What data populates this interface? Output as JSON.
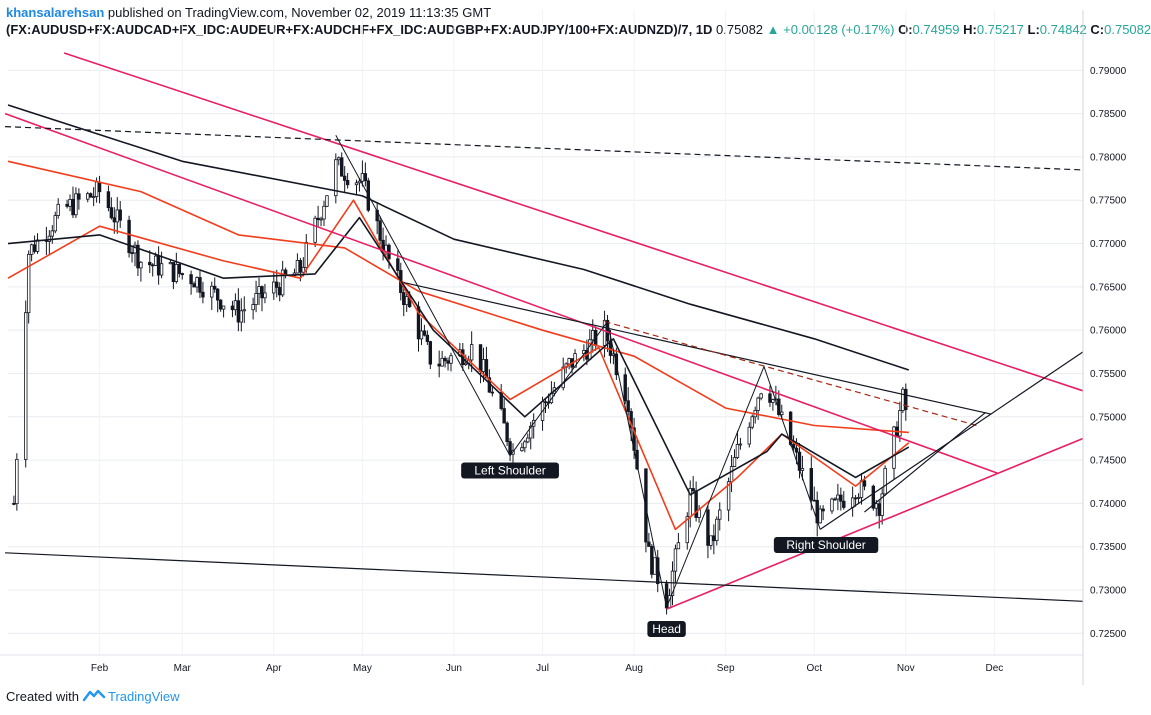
{
  "header": {
    "author": "khansalarehsan",
    "published_text": "published on TradingView.com, November 02, 2019 11:13:35 GMT",
    "symbol": "(FX:AUDUSD+FX:AUDCAD+FX_IDC:AUDEUR+FX:AUDCHF+FX_IDC:AUDGBP+FX:AUDJPY/100+FX:AUDNZD)/7, 1D",
    "last": "0.75082",
    "change": "▲ +0.00128 (+0.17%)",
    "o_label": "O:",
    "o": "0.74959",
    "h_label": "H:",
    "h": "0.75217",
    "l_label": "L:",
    "l": "0.74842",
    "c_label": "C:",
    "c": "0.75082"
  },
  "footer": {
    "created_with": "Created with",
    "brand": "TradingView"
  },
  "colors": {
    "pink": "#e91e63",
    "red": "#f23d1c",
    "black": "#131722",
    "grid": "#e9ecf1",
    "brand": "#2196f3",
    "dashed_brown": "#a52714"
  },
  "chart_data": {
    "type": "candlestick",
    "title": "(FX:AUDUSD+FX:AUDCAD+FX_IDC:AUDEUR+FX:AUDCHF+FX_IDC:AUDGBP+FX:AUDJPY/100+FX:AUDNZD)/7, 1D",
    "ylim": [
      0.7225,
      0.7935
    ],
    "y_ticks": [
      "0.79000",
      "0.78500",
      "0.78000",
      "0.77500",
      "0.77000",
      "0.76500",
      "0.76000",
      "0.75500",
      "0.75000",
      "0.74500",
      "0.74000",
      "0.73500",
      "0.73000",
      "0.72500"
    ],
    "x_ticks": [
      "Feb",
      "Mar",
      "Apr",
      "May",
      "Jun",
      "Jul",
      "Aug",
      "Sep",
      "Oct",
      "Nov",
      "Dec"
    ],
    "x_range": [
      "2019-01-01",
      "2019-12-31"
    ],
    "price_path": [
      {
        "date": "2019-01-03",
        "price": 0.74
      },
      {
        "date": "2019-01-08",
        "price": 0.769
      },
      {
        "date": "2019-01-20",
        "price": 0.774
      },
      {
        "date": "2019-02-01",
        "price": 0.776
      },
      {
        "date": "2019-02-15",
        "price": 0.768
      },
      {
        "date": "2019-03-05",
        "price": 0.766
      },
      {
        "date": "2019-03-20",
        "price": 0.762
      },
      {
        "date": "2019-04-10",
        "price": 0.767
      },
      {
        "date": "2019-04-22",
        "price": 0.779
      },
      {
        "date": "2019-05-01",
        "price": 0.777
      },
      {
        "date": "2019-05-10",
        "price": 0.768
      },
      {
        "date": "2019-05-25",
        "price": 0.756
      },
      {
        "date": "2019-06-08",
        "price": 0.758
      },
      {
        "date": "2019-06-21",
        "price": 0.746
      },
      {
        "date": "2019-07-10",
        "price": 0.756
      },
      {
        "date": "2019-07-22",
        "price": 0.76
      },
      {
        "date": "2019-07-30",
        "price": 0.752
      },
      {
        "date": "2019-08-06",
        "price": 0.734
      },
      {
        "date": "2019-08-12",
        "price": 0.729
      },
      {
        "date": "2019-08-20",
        "price": 0.741
      },
      {
        "date": "2019-08-27",
        "price": 0.735
      },
      {
        "date": "2019-09-05",
        "price": 0.746
      },
      {
        "date": "2019-09-14",
        "price": 0.7545
      },
      {
        "date": "2019-09-24",
        "price": 0.746
      },
      {
        "date": "2019-10-03",
        "price": 0.738
      },
      {
        "date": "2019-10-15",
        "price": 0.742
      },
      {
        "date": "2019-10-23",
        "price": 0.74
      },
      {
        "date": "2019-10-31",
        "price": 0.752
      },
      {
        "date": "2019-11-01",
        "price": 0.7508
      }
    ],
    "moving_averages": [
      {
        "name": "MA black (slow)",
        "color": "#131722",
        "points": [
          {
            "date": "2019-01-01",
            "price": 0.786
          },
          {
            "date": "2019-03-01",
            "price": 0.7795
          },
          {
            "date": "2019-05-01",
            "price": 0.7755
          },
          {
            "date": "2019-06-01",
            "price": 0.7705
          },
          {
            "date": "2019-07-15",
            "price": 0.767
          },
          {
            "date": "2019-08-20",
            "price": 0.763
          },
          {
            "date": "2019-10-01",
            "price": 0.759
          },
          {
            "date": "2019-11-02",
            "price": 0.7554
          }
        ]
      },
      {
        "name": "MA red (medium)",
        "color": "#f23d1c",
        "points": [
          {
            "date": "2019-01-01",
            "price": 0.7795
          },
          {
            "date": "2019-02-15",
            "price": 0.776
          },
          {
            "date": "2019-03-20",
            "price": 0.771
          },
          {
            "date": "2019-04-25",
            "price": 0.7695
          },
          {
            "date": "2019-05-20",
            "price": 0.7645
          },
          {
            "date": "2019-07-01",
            "price": 0.76
          },
          {
            "date": "2019-08-01",
            "price": 0.757
          },
          {
            "date": "2019-09-01",
            "price": 0.751
          },
          {
            "date": "2019-10-01",
            "price": 0.749
          },
          {
            "date": "2019-11-02",
            "price": 0.7482
          }
        ]
      },
      {
        "name": "MA red (fast)",
        "color": "#f23d1c",
        "points": [
          {
            "date": "2019-01-01",
            "price": 0.766
          },
          {
            "date": "2019-02-01",
            "price": 0.772
          },
          {
            "date": "2019-03-15",
            "price": 0.768
          },
          {
            "date": "2019-04-10",
            "price": 0.766
          },
          {
            "date": "2019-04-28",
            "price": 0.775
          },
          {
            "date": "2019-05-20",
            "price": 0.762
          },
          {
            "date": "2019-06-20",
            "price": 0.752
          },
          {
            "date": "2019-07-20",
            "price": 0.758
          },
          {
            "date": "2019-08-15",
            "price": 0.737
          },
          {
            "date": "2019-09-05",
            "price": 0.743
          },
          {
            "date": "2019-09-20",
            "price": 0.748
          },
          {
            "date": "2019-10-15",
            "price": 0.742
          },
          {
            "date": "2019-11-02",
            "price": 0.747
          }
        ]
      },
      {
        "name": "MA black (fast)",
        "color": "#131722",
        "points": [
          {
            "date": "2019-01-01",
            "price": 0.77
          },
          {
            "date": "2019-02-01",
            "price": 0.771
          },
          {
            "date": "2019-03-15",
            "price": 0.766
          },
          {
            "date": "2019-04-15",
            "price": 0.7665
          },
          {
            "date": "2019-04-30",
            "price": 0.773
          },
          {
            "date": "2019-05-25",
            "price": 0.76
          },
          {
            "date": "2019-06-25",
            "price": 0.75
          },
          {
            "date": "2019-07-25",
            "price": 0.759
          },
          {
            "date": "2019-08-20",
            "price": 0.741
          },
          {
            "date": "2019-09-15",
            "price": 0.746
          },
          {
            "date": "2019-09-20",
            "price": 0.748
          },
          {
            "date": "2019-10-15",
            "price": 0.743
          },
          {
            "date": "2019-11-02",
            "price": 0.7465
          }
        ]
      }
    ],
    "trendlines": [
      {
        "name": "pink upper channel",
        "color": "#e91e63",
        "dash": false,
        "from": {
          "date": "2019-01-20",
          "price": 0.792
        },
        "to": {
          "date": "2019-12-31",
          "price": 0.753
        }
      },
      {
        "name": "pink descending neckline",
        "color": "#e91e63",
        "dash": false,
        "from": {
          "date": "2018-12-31",
          "price": 0.785
        },
        "to": {
          "date": "2019-12-02",
          "price": 0.7435
        }
      },
      {
        "name": "pink rising support",
        "color": "#e91e63",
        "dash": false,
        "from": {
          "date": "2019-08-12",
          "price": 0.7278
        },
        "to": {
          "date": "2019-12-31",
          "price": 0.7475
        }
      },
      {
        "name": "black lower channel",
        "color": "#131722",
        "dash": false,
        "from": {
          "date": "2018-12-31",
          "price": 0.7343
        },
        "to": {
          "date": "2019-12-31",
          "price": 0.7287
        }
      },
      {
        "name": "black dashed resistance",
        "color": "#131722",
        "dash": true,
        "from": {
          "date": "2018-12-31",
          "price": 0.7835
        },
        "to": {
          "date": "2019-12-31",
          "price": 0.7785
        }
      },
      {
        "name": "black neckline",
        "color": "#131722",
        "dash": false,
        "from": {
          "date": "2019-05-15",
          "price": 0.7655
        },
        "to": {
          "date": "2019-11-30",
          "price": 0.7503
        }
      },
      {
        "name": "brown dashed neckline",
        "color": "#a52714",
        "dash": true,
        "from": {
          "date": "2019-07-22",
          "price": 0.761
        },
        "to": {
          "date": "2019-11-25",
          "price": 0.749
        }
      },
      {
        "name": "black rising wedge line",
        "color": "#131722",
        "dash": false,
        "from": {
          "date": "2019-10-03",
          "price": 0.737
        },
        "to": {
          "date": "2019-12-31",
          "price": 0.7575
        }
      },
      {
        "name": "black lower wedge",
        "color": "#131722",
        "dash": false,
        "from": {
          "date": "2019-10-18",
          "price": 0.739
        },
        "to": {
          "date": "2019-11-28",
          "price": 0.7505
        }
      }
    ],
    "pattern_path": [
      {
        "date": "2019-04-22",
        "price": 0.7825
      },
      {
        "date": "2019-06-20",
        "price": 0.7455
      },
      {
        "date": "2019-07-23",
        "price": 0.761
      },
      {
        "date": "2019-08-12",
        "price": 0.728
      },
      {
        "date": "2019-09-14",
        "price": 0.7558
      },
      {
        "date": "2019-10-03",
        "price": 0.737
      }
    ],
    "annotations": [
      {
        "text": "Left Shoulder",
        "date": "2019-06-20",
        "price": 0.7438
      },
      {
        "text": "Head",
        "date": "2019-08-12",
        "price": 0.7255
      },
      {
        "text": "Right Shoulder",
        "date": "2019-10-05",
        "price": 0.7352
      }
    ]
  }
}
